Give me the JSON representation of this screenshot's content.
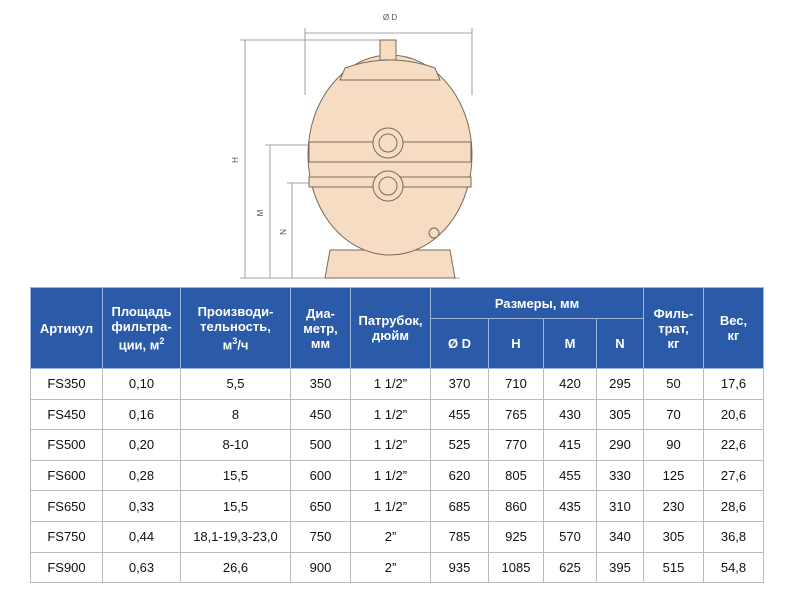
{
  "diagram": {
    "labels": {
      "diameter": "Ø D",
      "height": "H",
      "m": "M",
      "n": "N"
    }
  },
  "table": {
    "header": [
      {
        "lines": [
          "Артикул"
        ]
      },
      {
        "lines": [
          "Площадь",
          "фильтра-"
        ],
        "last": {
          "before": "ции, м",
          "sup": "2"
        }
      },
      {
        "lines": [
          "Производи-",
          "тельность,"
        ],
        "last": {
          "before": "м",
          "sup": "3",
          "after": "/ч"
        }
      },
      {
        "lines": [
          "Диа-",
          "метр,",
          "мм"
        ]
      },
      {
        "lines": [
          "Патрубок,",
          "дюйм"
        ]
      },
      {
        "lines": [
          "Размеры, мм"
        ]
      },
      {
        "lines": [
          "Филь-",
          "трат,",
          "кг"
        ]
      },
      {
        "lines": [
          "Вес,",
          "кг"
        ]
      }
    ],
    "subheader": [
      "Ø D",
      "H",
      "M",
      "N"
    ],
    "rows": [
      [
        "FS350",
        "0,10",
        "5,5",
        "350",
        "1 1/2”",
        "370",
        "710",
        "420",
        "295",
        "50",
        "17,6"
      ],
      [
        "FS450",
        "0,16",
        "8",
        "450",
        "1 1/2”",
        "455",
        "765",
        "430",
        "305",
        "70",
        "20,6"
      ],
      [
        "FS500",
        "0,20",
        "8-10",
        "500",
        "1 1/2”",
        "525",
        "770",
        "415",
        "290",
        "90",
        "22,6"
      ],
      [
        "FS600",
        "0,28",
        "15,5",
        "600",
        "1 1/2”",
        "620",
        "805",
        "455",
        "330",
        "125",
        "27,6"
      ],
      [
        "FS650",
        "0,33",
        "15,5",
        "650",
        "1 1/2”",
        "685",
        "860",
        "435",
        "310",
        "230",
        "28,6"
      ],
      [
        "FS750",
        "0,44",
        "18,1-19,3-23,0",
        "750",
        "2”",
        "785",
        "925",
        "570",
        "340",
        "305",
        "36,8"
      ],
      [
        "FS900",
        "0,63",
        "26,6",
        "900",
        "2”",
        "935",
        "1085",
        "625",
        "395",
        "515",
        "54,8"
      ]
    ]
  }
}
